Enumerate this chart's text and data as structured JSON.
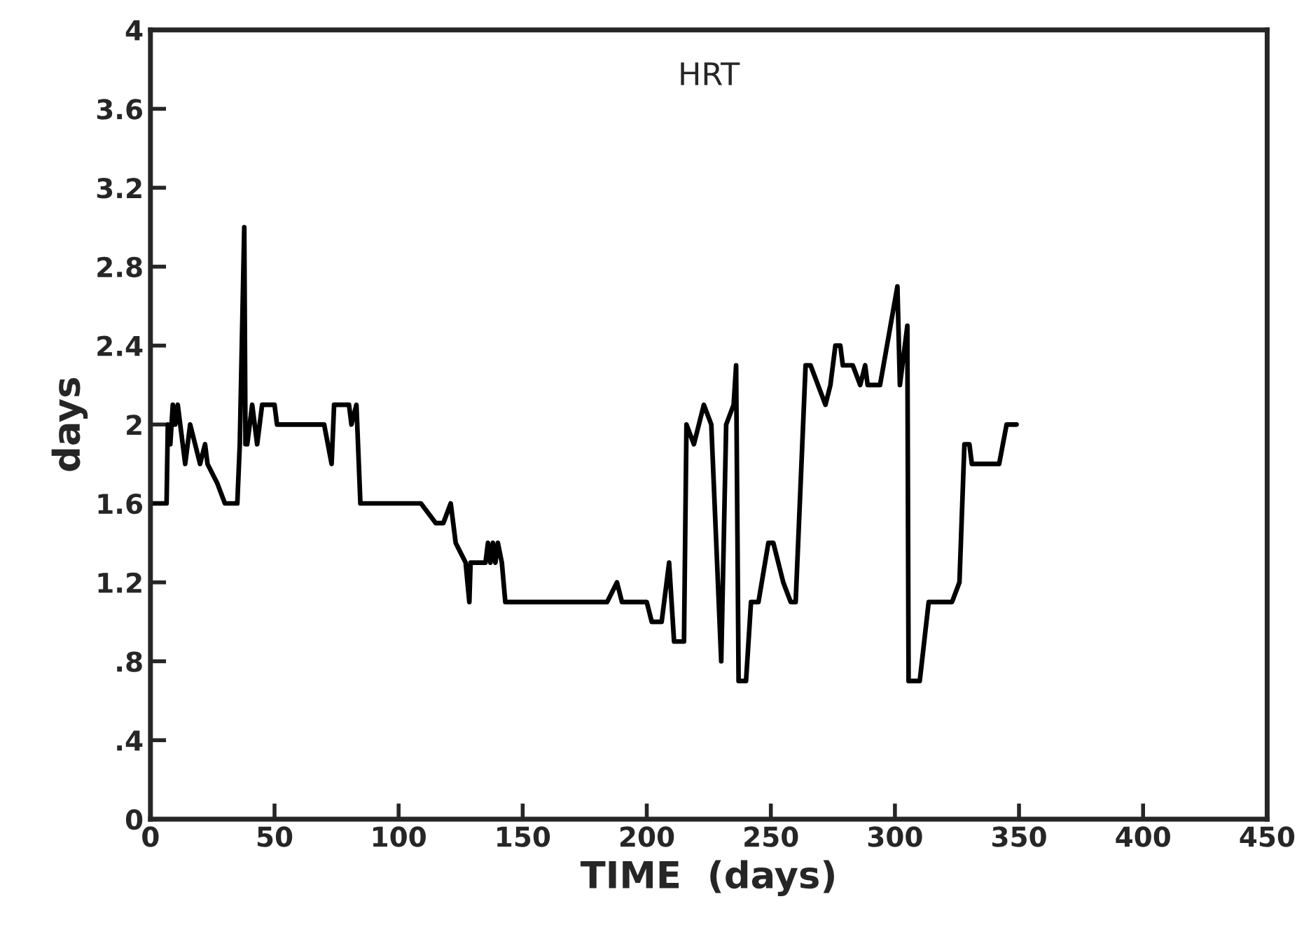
{
  "chart_data": {
    "type": "line",
    "title": "HRT",
    "xlabel": "TIME  (days)",
    "ylabel": "days",
    "xlim": [
      0,
      450
    ],
    "xticks": [
      0,
      50,
      100,
      150,
      200,
      250,
      300,
      350,
      400,
      450
    ],
    "ylim": [
      0,
      4
    ],
    "yticks": [
      0,
      {
        "value": 0.4,
        "label": ".4"
      },
      {
        "value": 0.8,
        "label": ".8"
      },
      1.2,
      1.6,
      2,
      2.4,
      2.8,
      3.2,
      3.6,
      4
    ],
    "grid": false,
    "marker": "none",
    "line_style": "solid",
    "series": [
      {
        "color": "#000000",
        "x": [
          0,
          6.5,
          7,
          8,
          9,
          10,
          11,
          14,
          16,
          18,
          20,
          22,
          23,
          27,
          30,
          35,
          36,
          37.8,
          38.3,
          39,
          41,
          43,
          45,
          50,
          51,
          70,
          73,
          74,
          80,
          81,
          83,
          84.6,
          109,
          115,
          118,
          121,
          122,
          123,
          127,
          128.5,
          129,
          135,
          136,
          137,
          138,
          139,
          140,
          141.6,
          143,
          184,
          188,
          190,
          200,
          202,
          206,
          209,
          211,
          215,
          216,
          219,
          223,
          226,
          230,
          232,
          235,
          236,
          237,
          240,
          242,
          245,
          249,
          251,
          255,
          258,
          260,
          264,
          266,
          272,
          274,
          276,
          278,
          279,
          283,
          286,
          288,
          289,
          294,
          301,
          302,
          305,
          305.5,
          310,
          313.6,
          323,
          326,
          328,
          330,
          331,
          342,
          345,
          349
        ],
        "values": [
          1.6,
          1.6,
          2.0,
          1.9,
          2.1,
          2.0,
          2.1,
          1.8,
          2.0,
          1.9,
          1.8,
          1.9,
          1.8,
          1.7,
          1.6,
          1.6,
          1.9,
          3.0,
          1.9,
          1.9,
          2.1,
          1.9,
          2.1,
          2.1,
          2.0,
          2.0,
          1.8,
          2.1,
          2.1,
          2.0,
          2.1,
          1.6,
          1.6,
          1.5,
          1.5,
          1.6,
          1.5,
          1.4,
          1.3,
          1.1,
          1.3,
          1.3,
          1.4,
          1.3,
          1.4,
          1.3,
          1.4,
          1.3,
          1.1,
          1.1,
          1.2,
          1.1,
          1.1,
          1.0,
          1.0,
          1.3,
          0.9,
          0.9,
          2.0,
          1.9,
          2.1,
          2.0,
          0.8,
          2.0,
          2.1,
          2.3,
          0.7,
          0.7,
          1.1,
          1.1,
          1.4,
          1.4,
          1.2,
          1.1,
          1.1,
          2.3,
          2.3,
          2.1,
          2.2,
          2.4,
          2.4,
          2.3,
          2.3,
          2.2,
          2.3,
          2.2,
          2.2,
          2.7,
          2.2,
          2.5,
          0.7,
          0.7,
          1.1,
          1.1,
          1.2,
          1.9,
          1.9,
          1.8,
          1.8,
          2.0,
          2.0
        ]
      }
    ]
  }
}
